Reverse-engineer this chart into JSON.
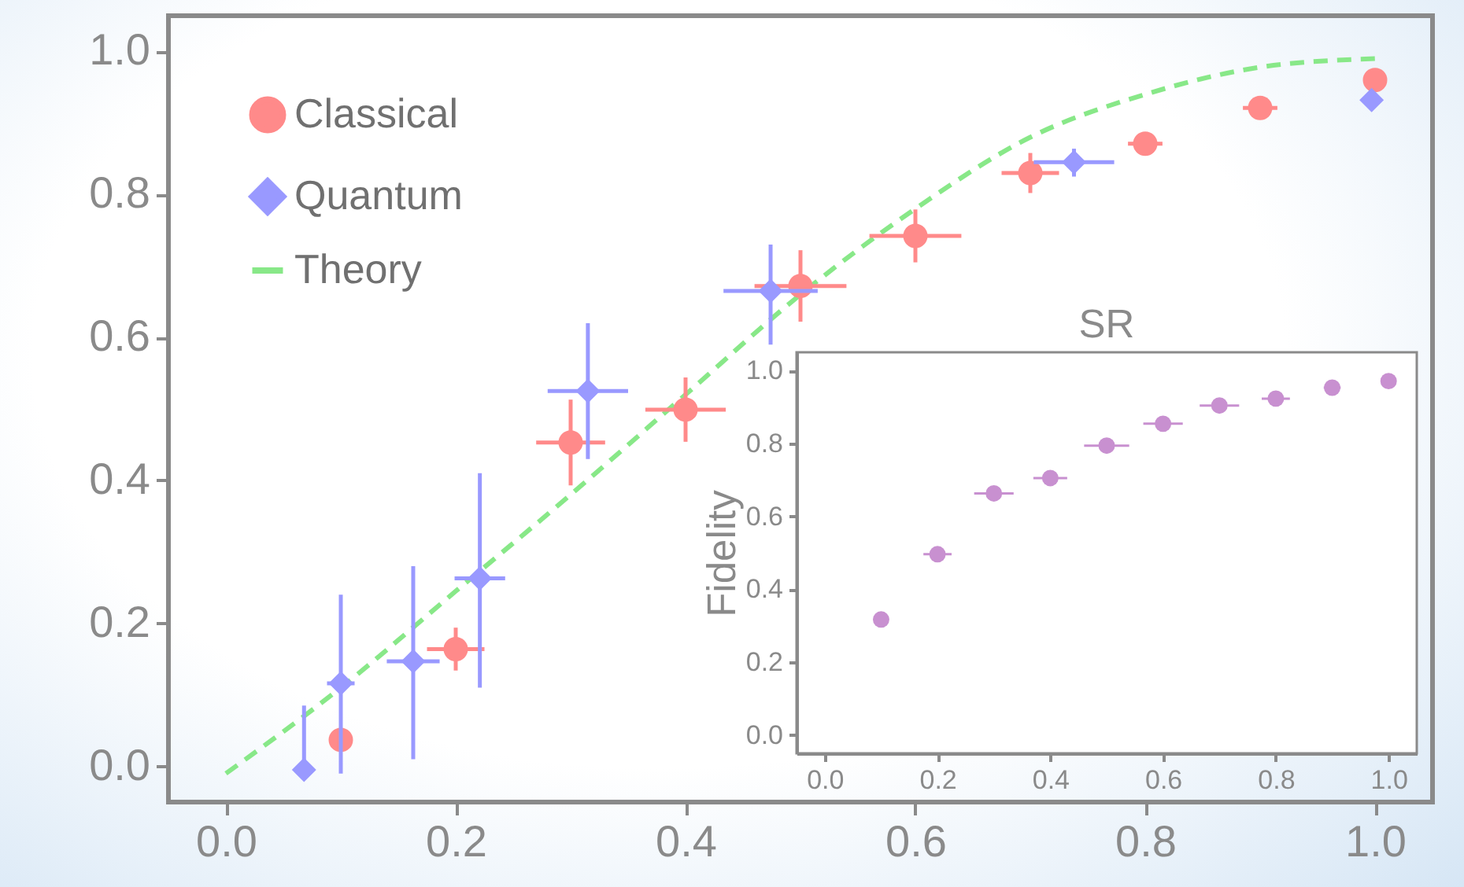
{
  "chart_data": [
    {
      "type": "scatter",
      "xlim": [
        -0.05,
        1.05
      ],
      "ylim": [
        -0.05,
        1.05
      ],
      "xticks": [
        {
          "value": 0,
          "label": "0.0"
        },
        {
          "value": 0.2,
          "label": "0.2"
        },
        {
          "value": 0.4,
          "label": "0.4"
        },
        {
          "value": 0.6,
          "label": "0.6"
        },
        {
          "value": 0.8,
          "label": "0.8"
        },
        {
          "value": 1,
          "label": "1.0"
        }
      ],
      "yticks": [
        {
          "value": 0,
          "label": "0.0"
        },
        {
          "value": 0.2,
          "label": "0.2"
        },
        {
          "value": 0.4,
          "label": "0.4"
        },
        {
          "value": 0.6,
          "label": "0.6"
        },
        {
          "value": 0.8,
          "label": "0.8"
        },
        {
          "value": 1,
          "label": "1.0"
        }
      ],
      "grid": false,
      "legend": "top left",
      "series": [
        {
          "name": "Classical",
          "marker": "circle",
          "color": "#ff8a8a",
          "x": [
            0.1,
            0.2,
            0.3,
            0.4,
            0.5,
            0.6,
            0.7,
            0.8,
            0.9,
            1.0
          ],
          "values": [
            0.037,
            0.164,
            0.453,
            0.499,
            0.672,
            0.742,
            0.83,
            0.871,
            0.921,
            0.96
          ],
          "errors": [
            null,
            0.03,
            0.06,
            0.045,
            0.05,
            0.037,
            0.028,
            null,
            null,
            null
          ],
          "xerrors": [
            null,
            0.025,
            0.03,
            0.035,
            0.04,
            0.04,
            0.025,
            0.015,
            0.015,
            null
          ]
        },
        {
          "name": "Quantum",
          "marker": "diamond",
          "color": "#9999ff",
          "x": [
            0.068,
            0.1,
            0.163,
            0.221,
            0.315,
            0.474,
            0.738,
            0.997
          ],
          "values": [
            -0.005,
            0.116,
            0.147,
            0.263,
            0.525,
            0.665,
            0.845,
            0.932
          ],
          "errors": [
            [
              -0.005,
              0.085
            ],
            [
              -0.01,
              0.24
            ],
            [
              0.01,
              0.28
            ],
            [
              0.11,
              0.41
            ],
            [
              0.43,
              0.62
            ],
            [
              0.59,
              0.73
            ],
            [
              0.825,
              0.864
            ],
            null
          ],
          "xerrors": [
            null,
            0.012,
            0.023,
            0.022,
            0.035,
            0.041,
            0.035,
            null
          ]
        },
        {
          "name": "Theory",
          "type": "line",
          "line_style": "dashed",
          "color": "#88e888",
          "x": [
            0,
            0.1,
            0.2,
            0.3,
            0.4,
            0.5,
            0.6,
            0.7,
            0.8,
            0.9,
            1.0
          ],
          "values": [
            -0.01,
            0.11,
            0.245,
            0.38,
            0.52,
            0.66,
            0.78,
            0.88,
            0.94,
            0.978,
            0.99
          ]
        }
      ]
    },
    {
      "type": "scatter",
      "title": "SR",
      "ylabel": "Fidelity",
      "xlim": [
        -0.05,
        1.05
      ],
      "ylim": [
        -0.05,
        1.05
      ],
      "xticks": [
        {
          "value": 0,
          "label": "0.0"
        },
        {
          "value": 0.2,
          "label": "0.2"
        },
        {
          "value": 0.4,
          "label": "0.4"
        },
        {
          "value": 0.6,
          "label": "0.6"
        },
        {
          "value": 0.8,
          "label": "0.8"
        },
        {
          "value": 1,
          "label": "1.0"
        }
      ],
      "yticks": [
        {
          "value": 0,
          "label": "0.0"
        },
        {
          "value": 0.2,
          "label": "0.2"
        },
        {
          "value": 0.4,
          "label": "0.4"
        },
        {
          "value": 0.6,
          "label": "0.6"
        },
        {
          "value": 0.8,
          "label": "0.8"
        },
        {
          "value": 1,
          "label": "1.0"
        }
      ],
      "grid": false,
      "series": [
        {
          "marker": "circle",
          "color": "#c890d0",
          "x": [
            0.1,
            0.2,
            0.3,
            0.4,
            0.5,
            0.6,
            0.7,
            0.8,
            0.9,
            1.0
          ],
          "values": [
            0.317,
            0.496,
            0.663,
            0.705,
            0.794,
            0.854,
            0.904,
            0.923,
            0.953,
            0.971
          ],
          "xerrors": [
            null,
            0.025,
            0.035,
            0.03,
            0.04,
            0.035,
            0.035,
            0.025,
            0.015,
            null
          ]
        }
      ]
    }
  ]
}
